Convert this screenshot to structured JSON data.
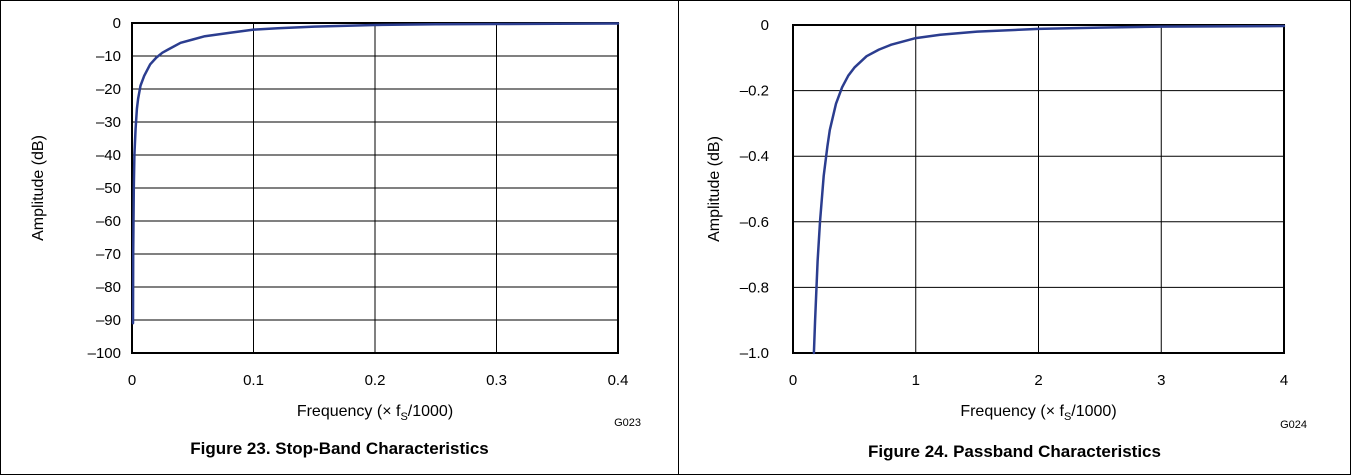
{
  "chart_data": [
    {
      "type": "line",
      "xlabel_main": "Frequency (× f",
      "xlabel_sub": "S",
      "xlabel_end": "/1000)",
      "ylabel": "Amplitude (dB)",
      "xlim": [
        0,
        0.4
      ],
      "ylim": [
        -100,
        0
      ],
      "x_ticks": [
        "0",
        "0.1",
        "0.2",
        "0.3",
        "0.4"
      ],
      "x_tick_values": [
        0,
        0.1,
        0.2,
        0.3,
        0.4
      ],
      "y_ticks": [
        "0",
        "–10",
        "–20",
        "–30",
        "–40",
        "–50",
        "–60",
        "–70",
        "–80",
        "–90",
        "–100"
      ],
      "y_tick_values": [
        0,
        -10,
        -20,
        -30,
        -40,
        -50,
        -60,
        -70,
        -80,
        -90,
        -100
      ],
      "grid": true,
      "code": "G023",
      "caption": "Figure 23. Stop-Band Characteristics",
      "color": "#2b3d8f",
      "series": [
        {
          "x": [
            0.0008,
            0.001,
            0.0015,
            0.002,
            0.003,
            0.004,
            0.005,
            0.007,
            0.01,
            0.015,
            0.02,
            0.025,
            0.03,
            0.04,
            0.05,
            0.06,
            0.08,
            0.1,
            0.12,
            0.15,
            0.2,
            0.25,
            0.3,
            0.35,
            0.4
          ],
          "y": [
            -91,
            -70,
            -50,
            -40,
            -32,
            -26,
            -23,
            -19,
            -16,
            -12.5,
            -10.5,
            -9,
            -8,
            -6,
            -5,
            -4,
            -3,
            -2,
            -1.6,
            -1.1,
            -0.6,
            -0.4,
            -0.3,
            -0.2,
            -0.15
          ]
        }
      ]
    },
    {
      "type": "line",
      "xlabel_main": "Frequency (× f",
      "xlabel_sub": "S",
      "xlabel_end": "/1000)",
      "ylabel": "Amplitude (dB)",
      "xlim": [
        0,
        4
      ],
      "ylim": [
        -1.0,
        0
      ],
      "x_ticks": [
        "0",
        "1",
        "2",
        "3",
        "4"
      ],
      "x_tick_values": [
        0,
        1,
        2,
        3,
        4
      ],
      "y_ticks": [
        "0",
        "–0.2",
        "–0.4",
        "–0.6",
        "–0.8",
        "–1.0"
      ],
      "y_tick_values": [
        0,
        -0.2,
        -0.4,
        -0.6,
        -0.8,
        -1.0
      ],
      "grid": true,
      "code": "G024",
      "caption": "Figure 24. Passband Characteristics",
      "color": "#2b3d8f",
      "series": [
        {
          "x": [
            0.17,
            0.18,
            0.2,
            0.22,
            0.25,
            0.28,
            0.3,
            0.35,
            0.4,
            0.45,
            0.5,
            0.6,
            0.7,
            0.8,
            1.0,
            1.2,
            1.5,
            2.0,
            2.5,
            3.0,
            4.0
          ],
          "y": [
            -1.0,
            -0.9,
            -0.72,
            -0.6,
            -0.46,
            -0.37,
            -0.32,
            -0.24,
            -0.19,
            -0.155,
            -0.13,
            -0.095,
            -0.075,
            -0.06,
            -0.04,
            -0.03,
            -0.02,
            -0.012,
            -0.008,
            -0.005,
            -0.003
          ]
        }
      ]
    }
  ]
}
